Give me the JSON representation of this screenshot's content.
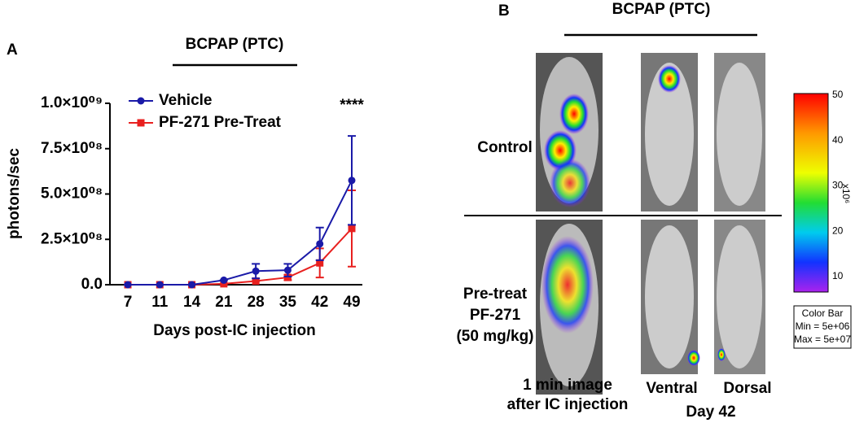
{
  "chart_data": {
    "type": "line",
    "panel_label": "A",
    "title": "BCPAP (PTC)",
    "x_label": "Days post-IC injection",
    "y_label": "photons/sec",
    "categories": [
      "7",
      "11",
      "14",
      "21",
      "28",
      "35",
      "42",
      "49"
    ],
    "series": [
      {
        "name": "Vehicle",
        "color": "#1a1aa8",
        "marker": "circle",
        "values": [
          0,
          0,
          0,
          25000000,
          75000000,
          80000000,
          225000000,
          575000000
        ],
        "errors": [
          0,
          0,
          0,
          0,
          40000000,
          35000000,
          90000000,
          245000000
        ]
      },
      {
        "name": "PF-271 Pre-Treat",
        "color": "#e8201f",
        "marker": "square",
        "values": [
          0,
          0,
          0,
          5000000,
          20000000,
          40000000,
          120000000,
          310000000
        ],
        "errors": [
          0,
          0,
          0,
          0,
          0,
          15000000,
          80000000,
          210000000
        ]
      }
    ],
    "ylim": [
      0,
      1000000000
    ],
    "yticks": [
      {
        "value": 0,
        "label": "0.0"
      },
      {
        "value": 250000000,
        "label": "2.5×10⁰⁸"
      },
      {
        "value": 500000000,
        "label": "5.0×10⁰⁸"
      },
      {
        "value": 750000000,
        "label": "7.5×10⁰⁸"
      },
      {
        "value": 1000000000,
        "label": "1.0×10⁰⁹"
      }
    ],
    "annotation": "****",
    "legend": "upper left"
  },
  "panel_b": {
    "panel_label": "B",
    "title": "BCPAP (PTC)",
    "row_labels": [
      [
        "Control"
      ],
      [
        "Pre-treat",
        "PF-271",
        "(50 mg/kg)"
      ]
    ],
    "column_labels": [
      [
        "1 min image",
        "after IC injection"
      ],
      [
        "Ventral"
      ],
      [
        "Dorsal"
      ]
    ],
    "day_label": "Day 42",
    "colorbar": {
      "ticks": [
        "50",
        "40",
        "30",
        "20",
        "10"
      ],
      "unit": "x10⁶",
      "box": [
        "Color Bar",
        "Min = 5e+06",
        "Max = 5e+07"
      ]
    }
  }
}
